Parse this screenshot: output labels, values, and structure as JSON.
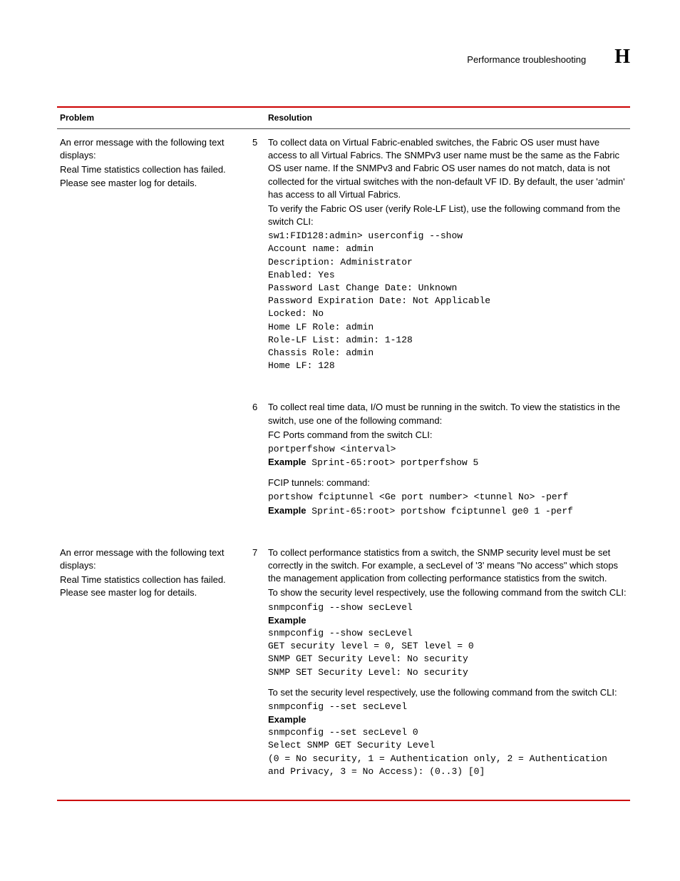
{
  "header": {
    "title": "Performance troubleshooting",
    "letter": "H"
  },
  "table": {
    "columns": {
      "problem": "Problem",
      "resolution": "Resolution"
    }
  },
  "row1": {
    "problem_l1": "An error message with the following text displays:",
    "problem_l2": "Real Time statistics collection has failed. Please see master log for details.",
    "step5": {
      "num": "5",
      "p1": "To collect data on Virtual Fabric-enabled switches, the Fabric OS user must have access to all Virtual Fabrics. The SNMPv3 user name must be the same as the Fabric OS user name. If the SNMPv3 and Fabric OS user names do not match, data is not collected for the virtual switches with the non-default VF ID. By default, the user 'admin' has access to all Virtual Fabrics.",
      "p2": "To verify the Fabric OS user (verify Role-LF List), use the following command from the switch CLI:",
      "c1": "sw1:FID128:admin> userconfig --show",
      "c2": "Account name: admin",
      "c3": "Description: Administrator",
      "c4": "Enabled: Yes",
      "c5": "Password Last Change Date: Unknown",
      "c6": "Password Expiration Date: Not Applicable",
      "c7": "Locked: No",
      "c8": "Home LF Role: admin",
      "c9": "Role-LF List: admin: 1-128",
      "c10": "Chassis Role: admin",
      "c11": "Home LF: 128"
    },
    "step6": {
      "num": "6",
      "p1": "To collect real time data, I/O must be running in the switch. To view the statistics in the switch, use one of the following command:",
      "p2": "FC Ports command from the switch CLI:",
      "c1": "portperfshow <interval>",
      "ex_label1": "Example",
      "ex1": " Sprint-65:root> portperfshow 5",
      "p3": "FCIP tunnels: command:",
      "c2": "portshow fciptunnel <Ge port number> <tunnel No> -perf",
      "ex_label2": "Example",
      "ex2": " Sprint-65:root> portshow fciptunnel ge0 1 -perf"
    }
  },
  "row2": {
    "problem_l1": "An error message with the following text displays:",
    "problem_l2": "Real Time statistics collection has failed. Please see master log for details.",
    "step7": {
      "num": "7",
      "p1": "To collect performance statistics from a switch, the SNMP security level must be set correctly in the switch. For example, a secLevel of '3' means \"No access\" which stops the management application from collecting performance statistics from the switch.",
      "p2": "To show the security level respectively, use the following command from the switch CLI:",
      "c1": "snmpconfig --show secLevel",
      "ex_label1": "Example",
      "c2": "snmpconfig --show secLevel",
      "c3": "GET security level = 0, SET level = 0",
      "c4": "SNMP GET Security Level: No security",
      "c5": "SNMP SET Security Level: No security",
      "p3": "To set the security level respectively, use the following command from the switch CLI:",
      "c6": "snmpconfig --set secLevel",
      "ex_label2": "Example",
      "c7": "snmpconfig --set secLevel 0",
      "c8": "Select SNMP GET Security Level",
      "c9": "(0 = No security, 1 = Authentication only, 2 = Authentication and Privacy, 3 = No Access): (0..3) [0]"
    }
  }
}
